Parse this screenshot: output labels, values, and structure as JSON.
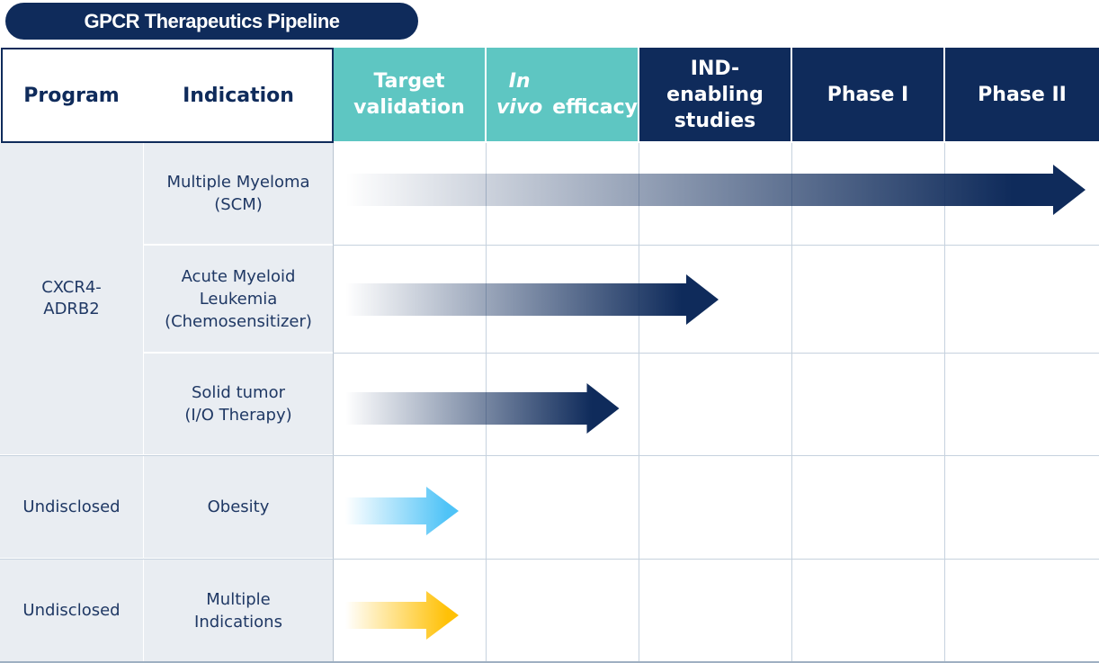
{
  "title": "GPCR Therapeutics Pipeline",
  "headers": {
    "program": "Program",
    "indication": "Indication"
  },
  "chart_data": {
    "type": "pipeline",
    "stages": [
      "Target\nvalidation",
      "In vivo\nefficacy",
      "IND-\nenabling\nstudies",
      "Phase I",
      "Phase II"
    ],
    "programs": [
      {
        "program": "CXCR4-\nADRB2",
        "indication": "Multiple Myeloma\n(SCM)",
        "progress_stage": 5.0,
        "color": "#0f2b5b"
      },
      {
        "program": "CXCR4-\nADRB2",
        "indication": "Acute Myeloid\nLeukemia\n(Chemosensitizer)",
        "progress_stage": 2.6,
        "color": "#0f2b5b"
      },
      {
        "program": "CXCR4-\nADRB2",
        "indication": "Solid tumor\n(I/O Therapy)",
        "progress_stage": 1.95,
        "color": "#0f2b5b"
      },
      {
        "program": "Undisclosed",
        "indication": "Obesity",
        "progress_stage": 0.9,
        "color": "#4fc3f7"
      },
      {
        "program": "Undisclosed",
        "indication": "Multiple\nIndications",
        "progress_stage": 0.9,
        "color": "#ffc107"
      }
    ]
  }
}
